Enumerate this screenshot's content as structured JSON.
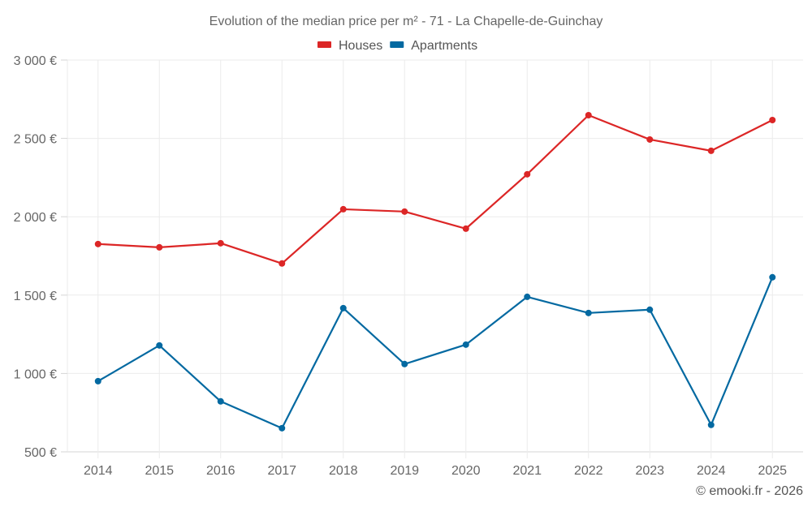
{
  "chart_data": {
    "type": "line",
    "title": "Evolution of the median price per m² - 71 - La Chapelle-de-Guinchay",
    "xlabel": "",
    "ylabel": "",
    "x": [
      "2014",
      "2015",
      "2016",
      "2017",
      "2018",
      "2019",
      "2020",
      "2021",
      "2022",
      "2023",
      "2024",
      "2025"
    ],
    "ylim": [
      500,
      3000
    ],
    "yticks": [
      500,
      1000,
      1500,
      2000,
      2500,
      3000
    ],
    "ytick_labels": [
      "500 €",
      "1 000 €",
      "1 500 €",
      "2 000 €",
      "2 500 €",
      "3 000 €"
    ],
    "grid": true,
    "legend_position": "top-center",
    "series": [
      {
        "name": "Houses",
        "color": "#dc2626",
        "values": [
          1826,
          1805,
          1831,
          1702,
          2048,
          2033,
          1924,
          2271,
          2648,
          2493,
          2421,
          2617
        ]
      },
      {
        "name": "Apartments",
        "color": "#0369a1",
        "values": [
          951,
          1179,
          822,
          651,
          1417,
          1060,
          1184,
          1489,
          1386,
          1407,
          672,
          1614
        ]
      }
    ],
    "credit": "© emooki.fr - 2026"
  }
}
